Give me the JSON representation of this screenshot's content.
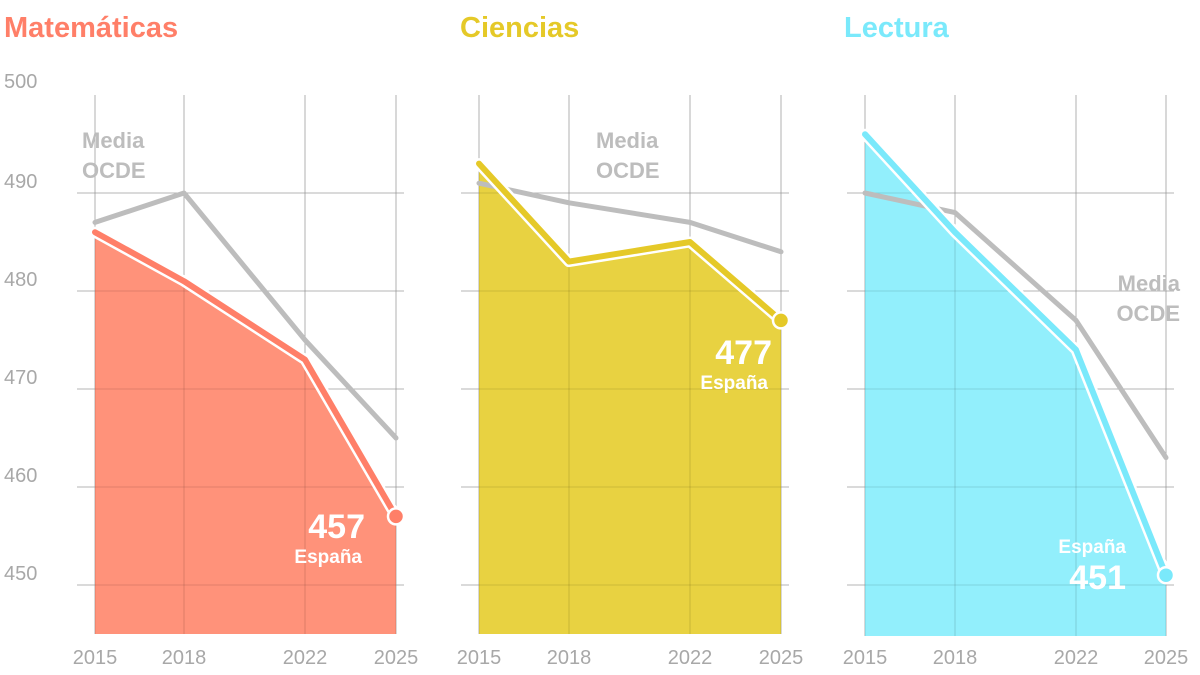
{
  "chart_data": [
    {
      "type": "area",
      "title": "Matemáticas",
      "x": [
        2015,
        2018,
        2022,
        2025
      ],
      "ylim": [
        445,
        500
      ],
      "yticks": [
        450,
        460,
        470,
        480,
        490,
        500
      ],
      "grid": true,
      "series": [
        {
          "name": "España",
          "values": [
            486,
            481,
            473,
            457
          ]
        },
        {
          "name": "Media OCDE",
          "values": [
            487,
            490,
            475,
            465
          ]
        }
      ],
      "annotations": {
        "value_label": "457",
        "series_label": "España",
        "avg_label": [
          "Media",
          "OCDE"
        ]
      }
    },
    {
      "type": "area",
      "title": "Ciencias",
      "x": [
        2015,
        2018,
        2022,
        2025
      ],
      "ylim": [
        445,
        500
      ],
      "grid": true,
      "series": [
        {
          "name": "España",
          "values": [
            493,
            483,
            485,
            477
          ]
        },
        {
          "name": "Media OCDE",
          "values": [
            491,
            489,
            487,
            484
          ]
        }
      ],
      "annotations": {
        "value_label": "477",
        "series_label": "España",
        "avg_label": [
          "Media",
          "OCDE"
        ]
      }
    },
    {
      "type": "area",
      "title": "Lectura",
      "x": [
        2015,
        2018,
        2022,
        2025
      ],
      "ylim": [
        445,
        500
      ],
      "grid": true,
      "series": [
        {
          "name": "España",
          "values": [
            496,
            486,
            474,
            451
          ]
        },
        {
          "name": "Media OCDE",
          "values": [
            490,
            488,
            477,
            463
          ]
        }
      ],
      "annotations": {
        "value_label": "451",
        "series_label": "España",
        "avg_label": [
          "Media",
          "OCDE"
        ]
      }
    }
  ],
  "colors": {
    "matematicas_fill": "#ff8a70",
    "matematicas_line": "#ff7f68",
    "ciencias_fill": "#e6cf33",
    "ciencias_line": "#e5c928",
    "lectura_fill": "#8aeefc",
    "lectura_line": "#7ae9fb",
    "ocde_line": "#bdbdbd",
    "axis_text": "#a8a8a8"
  }
}
